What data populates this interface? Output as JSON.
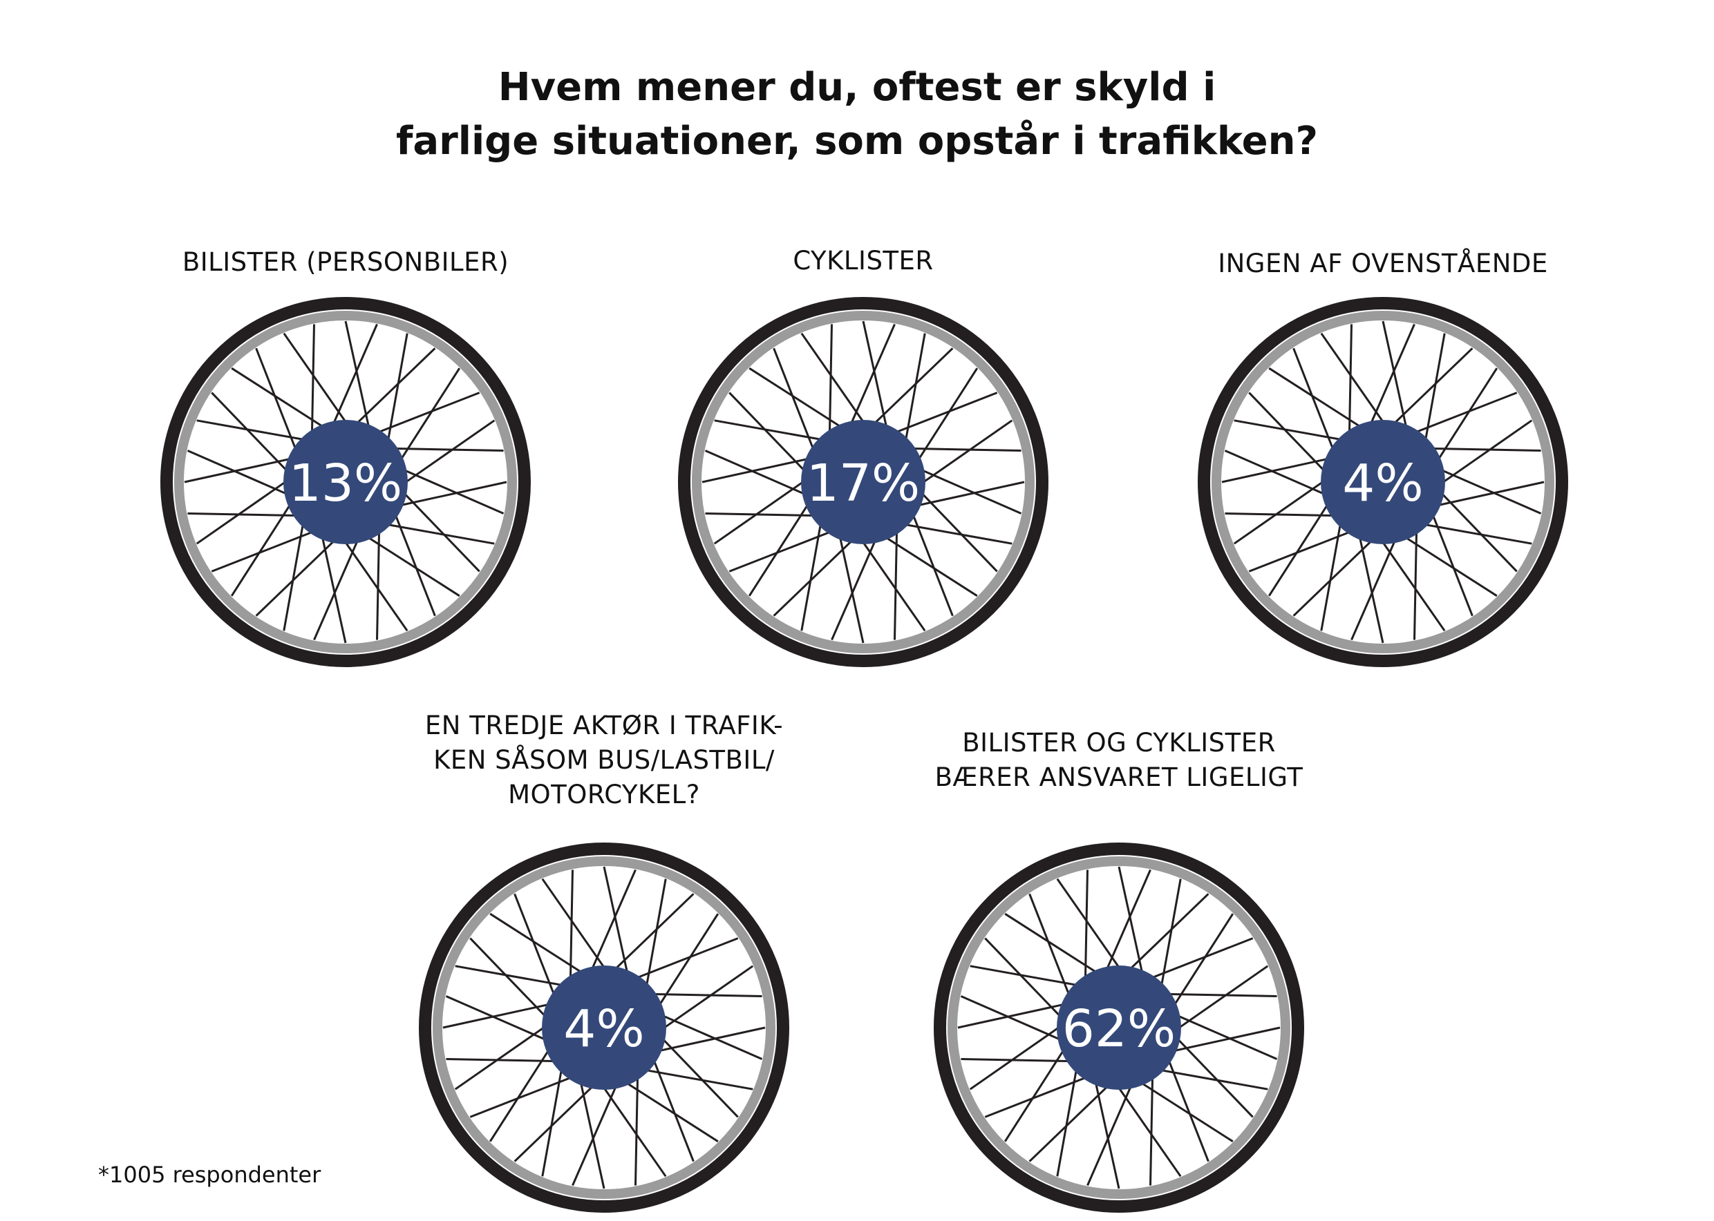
{
  "title": {
    "line1": "Hvem mener du, oftest er skyld i",
    "line2": "farlige situationer, som opstår i trafikken?"
  },
  "footnote": "*1005 respondenter",
  "colors": {
    "tire": "#231f20",
    "rim": "#9b9b9b",
    "spoke": "#231f20",
    "hub": "#34497a",
    "hub_text": "#ffffff"
  },
  "chart_data": {
    "type": "other",
    "title": "Hvem mener du, oftest er skyld i farlige situationer, som opstår i trafikken?",
    "unit": "%",
    "items": [
      {
        "label_lines": [
          "BILISTER (PERSONBILER)"
        ],
        "value": 13,
        "display": "13%"
      },
      {
        "label_lines": [
          "CYKLISTER"
        ],
        "value": 17,
        "display": "17%"
      },
      {
        "label_lines": [
          "INGEN AF OVENSTÅENDE"
        ],
        "value": 4,
        "display": "4%"
      },
      {
        "label_lines": [
          "EN TREDJE AKTØR I TRAFIK-",
          "KEN SÅSOM BUS/LASTBIL/",
          "MOTORCYKEL?"
        ],
        "value": 4,
        "display": "4%"
      },
      {
        "label_lines": [
          "BILISTER OG CYKLISTER",
          "BÆRER ANSVARET LIGELIGT"
        ],
        "value": 62,
        "display": "62%"
      }
    ],
    "note": "*1005 respondenter"
  }
}
